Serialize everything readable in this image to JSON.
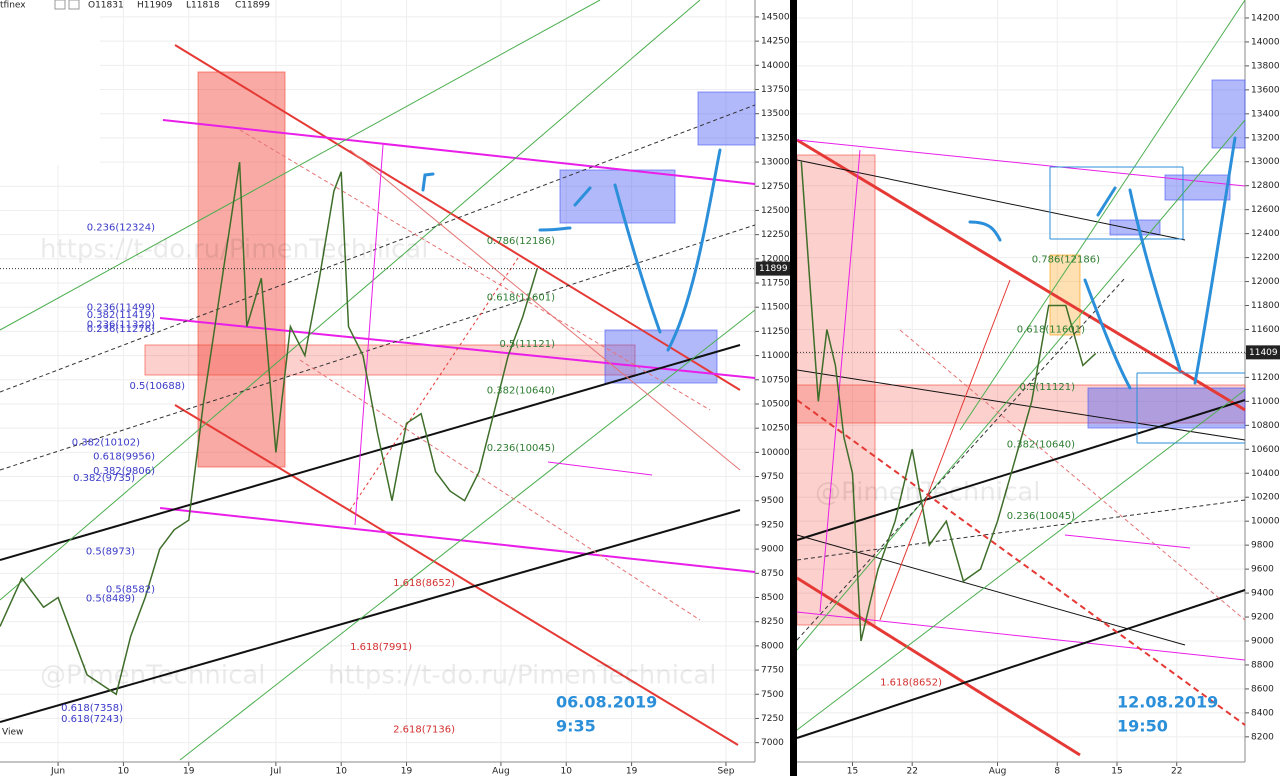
{
  "chart_data": [
    {
      "type": "line",
      "header": [
        "tfinex",
        "O11831",
        "H11909",
        "L11818",
        "C11899"
      ],
      "footer": "View",
      "xlim": [
        -8,
        96
      ],
      "xticks": [
        {
          "value": 0,
          "label": "Jun"
        },
        {
          "value": 9,
          "label": "10"
        },
        {
          "value": 18,
          "label": "19"
        },
        {
          "value": 30,
          "label": "Jul"
        },
        {
          "value": 39,
          "label": "10"
        },
        {
          "value": 48,
          "label": "19"
        },
        {
          "value": 61,
          "label": "Aug"
        },
        {
          "value": 70,
          "label": "10"
        },
        {
          "value": 79,
          "label": "19"
        },
        {
          "value": 92,
          "label": "Sep"
        }
      ],
      "ylim": [
        6800,
        14675
      ],
      "yticks": [
        7000,
        7250,
        7500,
        7750,
        8000,
        8250,
        8500,
        8750,
        9000,
        9250,
        9500,
        9750,
        10000,
        10250,
        10500,
        10750,
        11000,
        11250,
        11500,
        11750,
        12000,
        12250,
        12500,
        12750,
        13000,
        13250,
        13500,
        13750,
        14000,
        14250,
        14500
      ],
      "grid": true,
      "series": [
        {
          "color": "#3f6e2a",
          "x": [
            -8,
            -5,
            -2,
            0,
            2,
            4,
            6,
            8,
            10,
            12,
            14,
            16,
            18,
            20,
            22,
            24,
            25,
            26,
            28,
            30,
            32,
            34,
            36,
            38,
            39,
            40,
            42,
            44,
            46,
            48,
            50,
            52,
            54,
            56,
            58,
            60,
            62,
            64,
            66
          ],
          "values": [
            8200,
            8700,
            8400,
            8500,
            8100,
            7700,
            7600,
            7500,
            8100,
            8500,
            9000,
            9200,
            9300,
            10500,
            11500,
            12500,
            13000,
            11300,
            11800,
            10000,
            11300,
            11000,
            11800,
            12700,
            12900,
            11300,
            11000,
            10200,
            9500,
            10300,
            10400,
            9800,
            9600,
            9500,
            9800,
            10400,
            11000,
            11400,
            11900
          ]
        }
      ],
      "last_price": 11899,
      "fibs": [
        {
          "color": "#3a3ac8",
          "labels": [
            {
              "label": "0.236(12324)",
              "value": 12324
            },
            {
              "label": "0.236(11499)",
              "value": 11499
            },
            {
              "label": "0.382(11419)",
              "value": 11419
            },
            {
              "label": "0.236(11320)",
              "value": 11320
            },
            {
              "label": "0.236(11276)",
              "value": 11276
            },
            {
              "label": "0.5(10688)",
              "value": 10688
            },
            {
              "label": "0.382(10102)",
              "value": 10102
            },
            {
              "label": "0.618(9956)",
              "value": 9956
            },
            {
              "label": "0.382(9806)",
              "value": 9806
            },
            {
              "label": "0.382(9735)",
              "value": 9735
            },
            {
              "label": "0.5(8973)",
              "value": 8973
            },
            {
              "label": "0.5(8582)",
              "value": 8582
            },
            {
              "label": "0.5(8489)",
              "value": 8489
            },
            {
              "label": "0.618(7358)",
              "value": 7358
            },
            {
              "label": "0.618(7243)",
              "value": 7243
            }
          ]
        },
        {
          "color": "#2e7d32",
          "labels": [
            {
              "label": "0.786(12186)",
              "value": 12186
            },
            {
              "label": "0.618(11601)",
              "value": 11601
            },
            {
              "label": "0.5(11121)",
              "value": 11121
            },
            {
              "label": "0.382(10640)",
              "value": 10640
            },
            {
              "label": "0.236(10045)",
              "value": 10045
            }
          ]
        },
        {
          "color": "#d32f2f",
          "labels": [
            {
              "label": "1.618(8652)",
              "value": 8652
            },
            {
              "label": "1.618(7991)",
              "value": 7991
            },
            {
              "label": "2.618(7136)",
              "value": 7136
            }
          ]
        }
      ],
      "watermarks": [
        "https://t-do.ru/PimenTechnical",
        "@PimenTechnical",
        "https://t-do.ru/PimenTechnical"
      ],
      "stamp": [
        "06.08.2019",
        "9:35"
      ]
    },
    {
      "type": "line",
      "xlim": [
        7.5,
        60
      ],
      "xticks": [
        {
          "value": 14,
          "label": "15"
        },
        {
          "value": 21,
          "label": "22"
        },
        {
          "value": 31,
          "label": "Aug"
        },
        {
          "value": 38,
          "label": "8"
        },
        {
          "value": 45,
          "label": "15"
        },
        {
          "value": 52,
          "label": "22"
        }
      ],
      "ylim": [
        7990,
        14350
      ],
      "yticks": [
        8200,
        8400,
        8600,
        8800,
        9000,
        9200,
        9400,
        9600,
        9800,
        10000,
        10200,
        10400,
        10600,
        10800,
        11000,
        11200,
        11400,
        11600,
        11800,
        12000,
        12200,
        12400,
        12600,
        12800,
        13000,
        13200,
        13400,
        13600,
        13800,
        14000,
        14200
      ],
      "grid": true,
      "series": [
        {
          "color": "#3f6e2a",
          "x": [
            8,
            9,
            10,
            11,
            12,
            13,
            14,
            15,
            16,
            17,
            19,
            21,
            23,
            25,
            27,
            29,
            31,
            33,
            35,
            37,
            39,
            41,
            42.5
          ],
          "values": [
            13000,
            12000,
            11000,
            11600,
            11300,
            10700,
            10400,
            9000,
            9300,
            9600,
            10000,
            10600,
            9800,
            10000,
            9500,
            9600,
            10000,
            10500,
            11000,
            11800,
            11800,
            11300,
            11400
          ]
        }
      ],
      "last_price": 11409,
      "fibs": [
        {
          "color": "#2e7d32",
          "labels": [
            {
              "label": "0.786(12186)",
              "value": 12186
            },
            {
              "label": "0.618(11601)",
              "value": 11601
            },
            {
              "label": "0.5(11121)",
              "value": 11121
            },
            {
              "label": "0.382(10640)",
              "value": 10640
            },
            {
              "label": "0.236(10045)",
              "value": 10045
            }
          ]
        },
        {
          "color": "#d32f2f",
          "labels": [
            {
              "label": "1.618(8652)",
              "value": 8652
            }
          ]
        }
      ],
      "watermarks": [
        "@PimenTechnical"
      ],
      "stamp": [
        "12.08.2019",
        "19:50"
      ]
    }
  ]
}
